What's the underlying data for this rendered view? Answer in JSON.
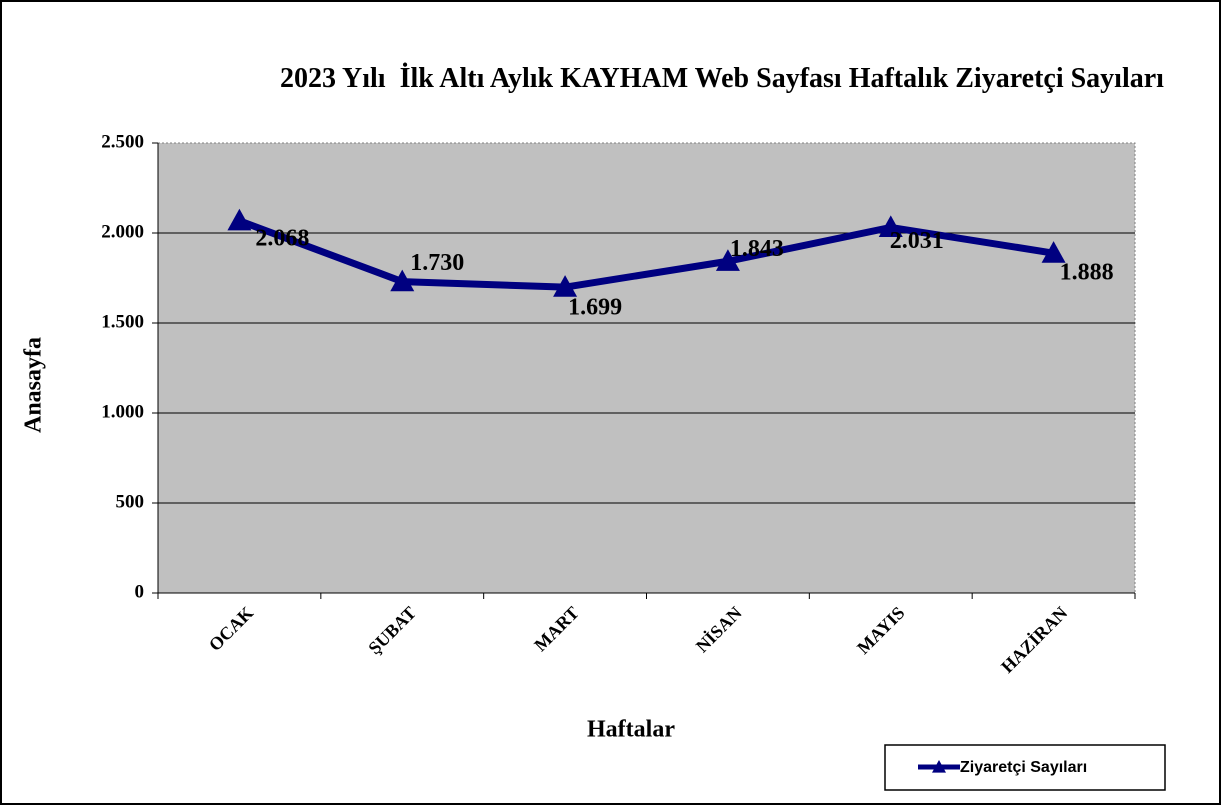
{
  "chart_data": {
    "type": "line",
    "title": "2023 Yılı  İlk Altı Aylık KAYHAM Web Sayfası Haftalık Ziyaretçi Sayıları",
    "x_label": "Haftalar",
    "y_label": "Anasayfa",
    "categories": [
      "OCAK",
      "ŞUBAT",
      "MART",
      "NİSAN",
      "MAYIS",
      "HAZİRAN"
    ],
    "series": [
      {
        "name": "Ziyaretçi Sayıları",
        "color": "#000080",
        "values": [
          2068,
          1730,
          1699,
          1843,
          2031,
          1888
        ],
        "value_labels": [
          "2.068",
          "1.730",
          "1.699",
          "1.843",
          "2.031",
          "1.888"
        ]
      }
    ],
    "ylim": [
      0,
      2500
    ],
    "yticks": [
      0,
      500,
      {
        "value": 1000,
        "label": "1.000"
      },
      {
        "value": 1500,
        "label": "1.500"
      },
      {
        "value": 2000,
        "label": "2.000"
      },
      {
        "value": 2500,
        "label": "2.500"
      }
    ],
    "grid": true,
    "legend": "lower right"
  }
}
